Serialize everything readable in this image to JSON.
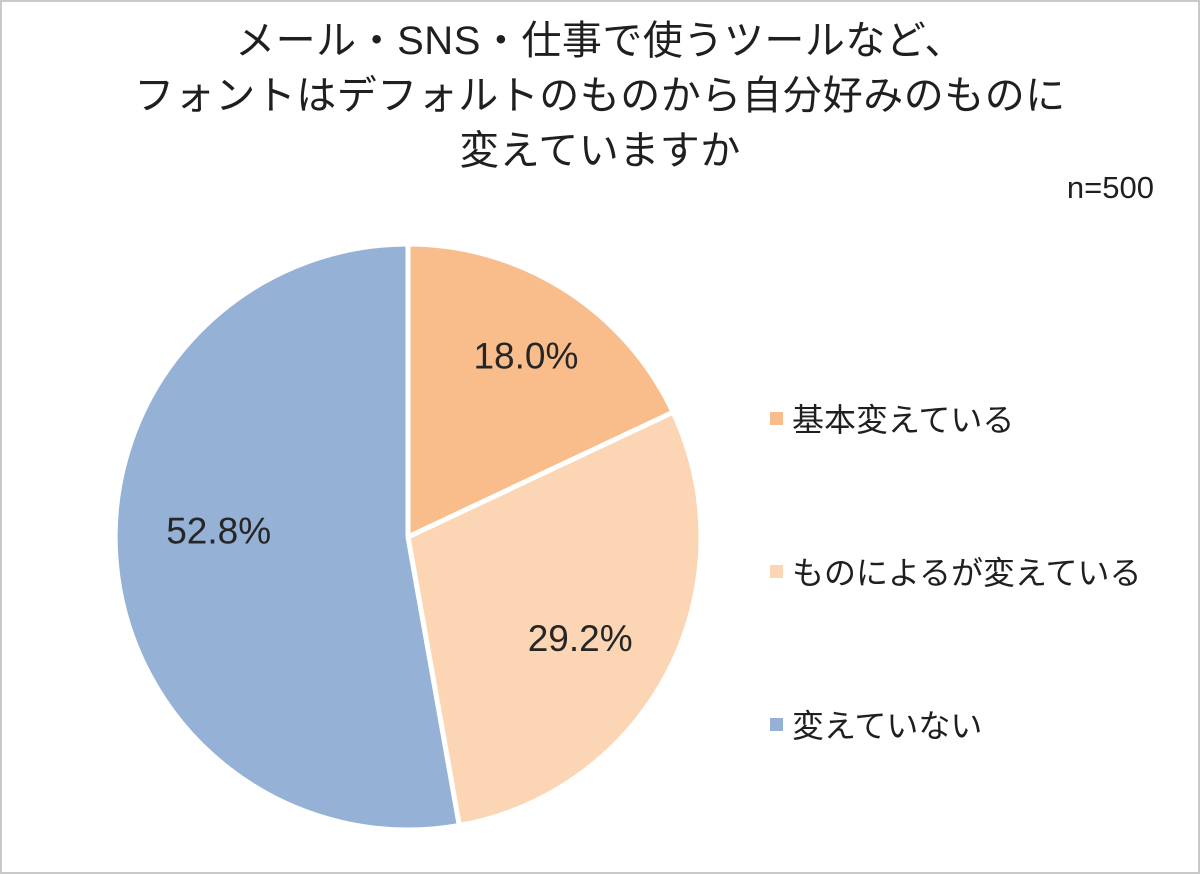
{
  "title": {
    "lines": [
      "メール・SNS・仕事で使うツールなど、",
      "フォントはデフォルトのものから自分好みのものに",
      "変えていますか"
    ]
  },
  "sample_size": "n=500",
  "chart_data": {
    "type": "pie",
    "title": "メール・SNS・仕事で使うツールなど、フォントはデフォルトのものから自分好みのものに変えていますか",
    "sample_size_label": "n=500",
    "start_angle_deg": 0,
    "direction": "clockwise-from-top",
    "legend_position": "right",
    "label_text_color": "#262626",
    "slice_border_color": "#ffffff",
    "slices": [
      {
        "label": "基本変えている",
        "value": 18.0,
        "display": "18.0%",
        "color": "#f8bd8b"
      },
      {
        "label": "ものによるが変えている",
        "value": 29.2,
        "display": "29.2%",
        "color": "#fcd5b4"
      },
      {
        "label": "変えていない",
        "value": 52.8,
        "display": "52.8%",
        "color": "#95b1d6"
      }
    ]
  },
  "page": {
    "background": "#ffffff",
    "border_color": "#c9c9c9"
  }
}
